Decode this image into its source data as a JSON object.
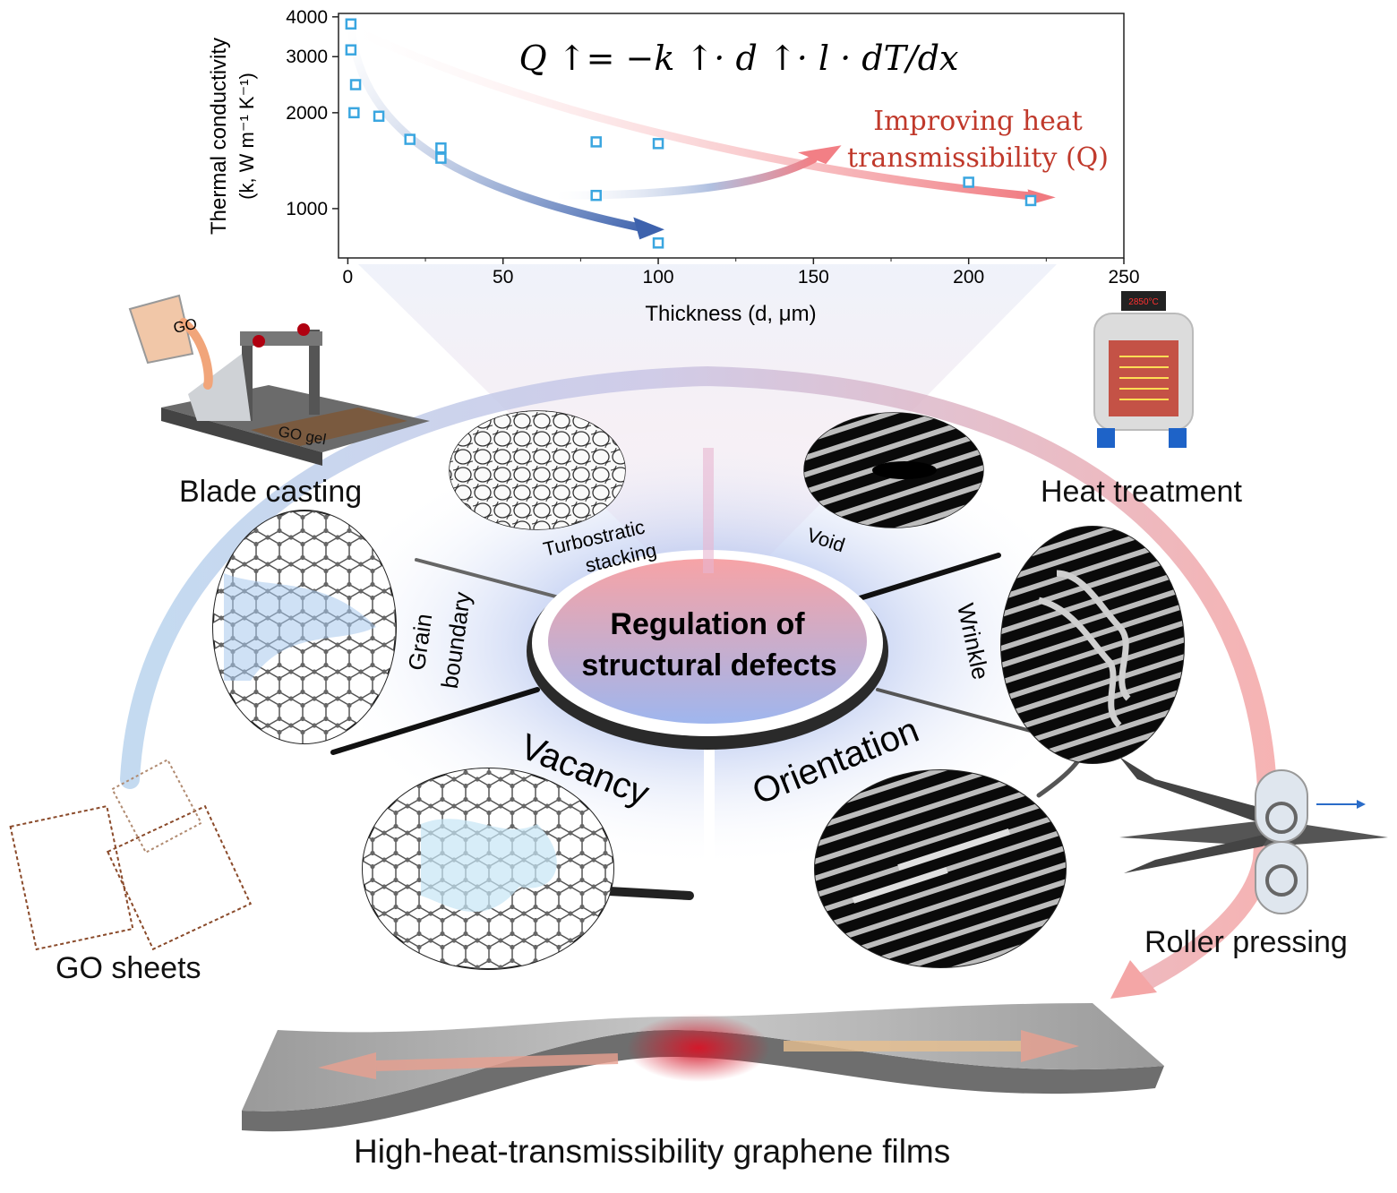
{
  "chart_data": {
    "type": "scatter",
    "xlabel": "Thickness (d, μm)",
    "ylabel_line1": "Thermal conductivity",
    "ylabel_line2": "(k, W m⁻¹ K⁻¹)",
    "xlim": [
      -3,
      250
    ],
    "ylim": [
      700,
      4100
    ],
    "yscale": "log",
    "x_ticks": [
      "0",
      "50",
      "100",
      "150",
      "200",
      "250"
    ],
    "x_tick_values": [
      0,
      50,
      100,
      150,
      200,
      250
    ],
    "y_ticks": [
      "1000",
      "2000",
      "3000",
      "4000"
    ],
    "y_tick_values": [
      1000,
      2000,
      3000,
      4000
    ],
    "grid": false,
    "points": [
      {
        "x": 1,
        "y": 3800
      },
      {
        "x": 1,
        "y": 3150
      },
      {
        "x": 2.5,
        "y": 2450
      },
      {
        "x": 2,
        "y": 2000
      },
      {
        "x": 10,
        "y": 1950
      },
      {
        "x": 20,
        "y": 1650
      },
      {
        "x": 30,
        "y": 1550
      },
      {
        "x": 30,
        "y": 1440
      },
      {
        "x": 80,
        "y": 1620
      },
      {
        "x": 100,
        "y": 1600
      },
      {
        "x": 80,
        "y": 1100
      },
      {
        "x": 100,
        "y": 780
      },
      {
        "x": 200,
        "y": 1210
      },
      {
        "x": 220,
        "y": 1060
      }
    ],
    "annotation_title_line1": "Improving heat",
    "annotation_title_line2": "transmissibility (Q)",
    "equation": "Q ↑= −k ↑· d ↑· l · dT/dx",
    "marker_color": "#3aa6e0"
  },
  "labels": {
    "blade_casting": "Blade casting",
    "heat_treatment": "Heat treatment",
    "roller_pressing": "Roller pressing",
    "go_sheets": "GO sheets",
    "films": "High-heat-transmissibility graphene films",
    "go_beaker": "GO",
    "go_gel": "GO gel",
    "furnace_display": "2850°C"
  },
  "center": {
    "line1": "Regulation of",
    "line2": "structural defects"
  },
  "defects": {
    "turbostratic_1": "Turbostratic",
    "turbostratic_2": "stacking",
    "void": "Void",
    "grain_1": "Grain",
    "grain_2": "boundary",
    "wrinkle": "Wrinkle",
    "vacancy": "Vacancy",
    "orientation": "Orientation"
  },
  "colors": {
    "red_arrow": "#e03030",
    "blue_arrow": "#4a6fb0",
    "accent_red": "#c0392b"
  }
}
